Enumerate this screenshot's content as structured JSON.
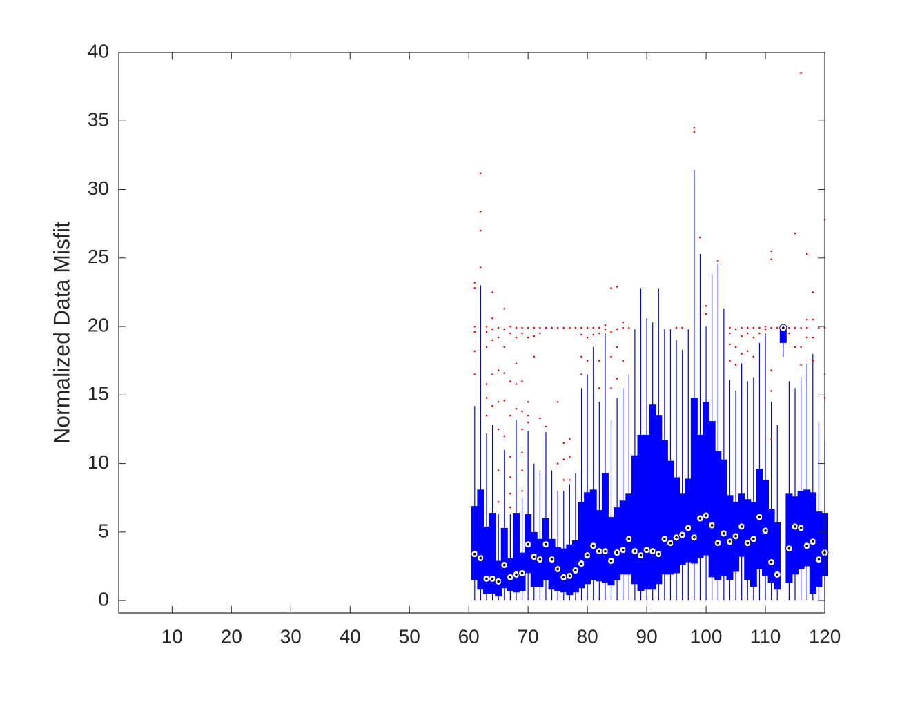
{
  "chart_data": {
    "type": "box",
    "y_label": "Normalized Data Misfit",
    "xlim": [
      1,
      120
    ],
    "ylim": [
      -0.9,
      40
    ],
    "xticks": [
      10,
      20,
      30,
      40,
      50,
      60,
      70,
      80,
      90,
      100,
      110,
      120
    ],
    "yticks": [
      0,
      5,
      10,
      15,
      20,
      25,
      30,
      35,
      40
    ],
    "box_color": "#0000ff",
    "outlier_color": "#ff0000",
    "positions": [
      61,
      62,
      63,
      64,
      65,
      66,
      67,
      68,
      69,
      70,
      71,
      72,
      73,
      74,
      75,
      76,
      77,
      78,
      79,
      80,
      81,
      82,
      83,
      84,
      85,
      86,
      87,
      88,
      89,
      90,
      91,
      92,
      93,
      94,
      95,
      96,
      97,
      98,
      99,
      100,
      101,
      102,
      103,
      104,
      105,
      106,
      107,
      108,
      109,
      110,
      111,
      112,
      113,
      114,
      115,
      116,
      117,
      118,
      119,
      120
    ],
    "q1": [
      1.5,
      0.8,
      0.5,
      0.5,
      0.3,
      0.9,
      0.7,
      0.6,
      0.7,
      2.0,
      1.0,
      1.0,
      1.5,
      0.8,
      0.7,
      0.6,
      0.4,
      0.6,
      0.9,
      1.2,
      1.5,
      1.4,
      1.3,
      1.1,
      1.5,
      1.9,
      1.9,
      1.2,
      0.7,
      0.8,
      0.8,
      1.2,
      1.9,
      1.9,
      2.0,
      2.6,
      2.8,
      2.7,
      3.1,
      3.3,
      1.7,
      1.5,
      1.8,
      1.5,
      2.1,
      3.2,
      1.5,
      1.0,
      2.3,
      1.8,
      1.3,
      0.8,
      18.8,
      1.3,
      1.9,
      2.3,
      2.5,
      0.5,
      1.0,
      1.8
    ],
    "median": [
      3.4,
      3.1,
      1.6,
      1.6,
      1.4,
      2.6,
      1.7,
      1.9,
      2.0,
      4.1,
      3.2,
      3.0,
      4.1,
      3.0,
      2.3,
      1.7,
      1.8,
      2.2,
      2.7,
      3.3,
      4.0,
      3.6,
      3.6,
      2.9,
      3.5,
      3.7,
      4.5,
      3.6,
      3.3,
      3.7,
      3.6,
      3.4,
      4.5,
      4.2,
      4.6,
      4.8,
      5.3,
      4.6,
      6.0,
      6.2,
      5.5,
      4.2,
      4.9,
      4.3,
      4.7,
      5.4,
      4.2,
      4.5,
      6.1,
      5.1,
      2.8,
      1.9,
      19.9,
      3.8,
      5.4,
      5.3,
      4.0,
      4.3,
      3.0,
      3.5
    ],
    "q3": [
      6.9,
      8.1,
      5.4,
      6.4,
      2.9,
      5.3,
      3.1,
      6.4,
      3.5,
      6.3,
      5.0,
      4.5,
      6.0,
      4.5,
      3.9,
      3.8,
      4.1,
      4.4,
      7.2,
      7.9,
      8.1,
      6.6,
      9.3,
      6.1,
      6.8,
      7.3,
      7.8,
      10.6,
      12.1,
      12.1,
      14.3,
      13.5,
      11.7,
      10.2,
      9.0,
      7.8,
      8.9,
      14.8,
      12.1,
      14.5,
      13.1,
      10.9,
      10.3,
      7.7,
      7.2,
      7.8,
      7.4,
      7.2,
      9.6,
      8.8,
      6.7,
      5.7,
      19.8,
      7.8,
      7.6,
      8.0,
      8.1,
      7.9,
      6.5,
      6.4
    ],
    "whisker_low": [
      0,
      0,
      0,
      0,
      0,
      0,
      0,
      0,
      0,
      0,
      0,
      0,
      0,
      0,
      0,
      0,
      0,
      0,
      0,
      0,
      0,
      0,
      0,
      0,
      0,
      0,
      0,
      0,
      0,
      0,
      0,
      0,
      0,
      0,
      0,
      0,
      0,
      0,
      0,
      0,
      0,
      0,
      0,
      0,
      0,
      0,
      0,
      0,
      0,
      0,
      0,
      0,
      17.8,
      0,
      0,
      0,
      0,
      0,
      0,
      0
    ],
    "whisker_high": [
      14.2,
      23,
      12.2,
      12.8,
      6.3,
      11,
      6.3,
      13.2,
      7.5,
      12.4,
      10,
      9.5,
      12.3,
      9.5,
      8,
      8,
      8.5,
      9.3,
      15.5,
      16.5,
      18.5,
      14.5,
      19.5,
      13.2,
      14.8,
      15.5,
      16.5,
      19.8,
      22.8,
      20.6,
      20.3,
      22.8,
      19.8,
      19.8,
      19,
      18.3,
      19.8,
      31.4,
      25.3,
      20,
      23.8,
      24.6,
      21.3,
      16.1,
      15.3,
      17.3,
      16,
      16.3,
      18.8,
      19.5,
      14.5,
      12.8,
      20.1,
      16,
      15.5,
      16.3,
      17.3,
      18,
      13,
      11.8
    ],
    "outliers": [
      [
        16.5,
        18.2,
        19.6,
        20,
        22.8,
        23.2
      ],
      [
        24.3,
        27,
        28.4,
        31.2
      ],
      [
        13.5,
        14.8,
        15.8,
        18.5,
        19.6,
        20
      ],
      [
        14.2,
        16.5,
        19,
        19.8,
        20.6,
        22.5
      ],
      [
        7.2,
        9.5,
        12.5,
        14.5,
        16.8,
        19.2,
        19.9
      ],
      [
        12,
        14.6,
        16.6,
        18.5,
        19.8,
        21.3
      ],
      [
        6.8,
        7.8,
        9,
        10.5,
        13.5,
        16,
        19.5,
        20
      ],
      [
        14,
        15.8,
        17.3,
        19.2,
        19.9
      ],
      [
        8,
        9.5,
        10.8,
        12.5,
        13.8,
        16,
        19.5,
        19.9
      ],
      [
        13,
        13.5,
        14.5,
        19.2,
        19.9
      ],
      [
        17.8,
        19.3,
        19.9
      ],
      [
        13.3,
        19.5,
        19.9
      ],
      [
        12.7,
        19.9
      ],
      [
        19.9
      ],
      [
        10,
        14.5,
        19.9
      ],
      [
        8.8,
        10.3,
        11.5,
        19.9
      ],
      [
        8.8,
        10.5,
        11.8,
        19.9
      ],
      [
        19.9
      ],
      [
        16.5,
        17.8,
        19.4,
        19.9
      ],
      [
        17.5,
        19.2,
        19.9
      ],
      [
        19.4,
        19.9
      ],
      [
        15.5,
        17.5,
        19.5,
        19.9
      ],
      [
        19.8,
        20.1
      ],
      [
        15.5,
        17.8,
        19.6,
        22.8
      ],
      [
        16.2,
        18.5,
        19.8,
        22.9
      ],
      [
        17.5,
        19.9,
        20.3
      ],
      [
        19.9
      ],
      [],
      [],
      [],
      [],
      [],
      [],
      [],
      [
        19.9
      ],
      [
        19.9
      ],
      [],
      [
        34.2,
        34.5
      ],
      [
        26.5
      ],
      [
        20.9,
        21.5
      ],
      [],
      [
        24.8
      ],
      [],
      [
        17.5,
        18.7,
        19.5,
        19.9
      ],
      [
        17.2,
        18.5,
        19.8
      ],
      [
        18,
        19.3,
        19.9
      ],
      [
        18.2,
        19.5,
        19.9
      ],
      [
        17.8,
        19.2,
        19.9
      ],
      [
        19.5,
        19.9
      ],
      [
        19.8,
        20
      ],
      [
        11.8,
        15.3,
        16.8,
        19.9,
        24.9,
        25.5
      ],
      [
        19.9
      ],
      [],
      [
        19.5,
        19.9
      ],
      [
        18.5,
        19.9,
        26.8
      ],
      [
        17.2,
        18.5,
        19.9,
        38.5
      ],
      [
        19.2,
        19.9,
        20.5,
        25.3
      ],
      [
        17.5,
        19.2,
        20.5,
        22.5
      ],
      [
        19.9
      ],
      [
        14.8,
        16.5,
        19.9,
        27.8
      ]
    ]
  }
}
